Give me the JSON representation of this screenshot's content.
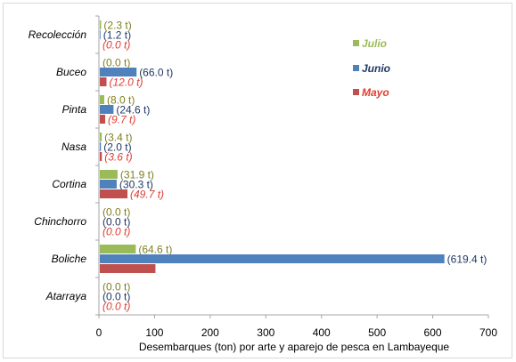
{
  "chart_data": {
    "type": "bar",
    "orientation": "horizontal",
    "xlabel": "Desembarques (ton) por arte y aparejo de pesca en Lambayeque",
    "ylabel": "",
    "xlim": [
      0,
      700
    ],
    "xticks": [
      "0",
      "100",
      "200",
      "300",
      "400",
      "500",
      "600",
      "700"
    ],
    "categories": [
      "Recolección",
      "Buceo",
      "Pinta",
      "Nasa",
      "Cortina",
      "Chinchorro",
      "Boliche",
      "Atarraya"
    ],
    "series": [
      {
        "name": "Julio",
        "color": "#9bbb59",
        "label_color": "#7f7f1f",
        "label_style": "normal",
        "values": [
          2.3,
          0.0,
          8.0,
          3.4,
          31.9,
          0.0,
          64.6,
          0.0
        ],
        "labels": [
          "(2.3 t)",
          "(0.0 t)",
          "(8.0 t)",
          "(3.4 t)",
          "(31.9 t)",
          "(0.0 t)",
          "(64.6 t)",
          "(0.0 t)"
        ]
      },
      {
        "name": "Junio",
        "color": "#4f81bd",
        "label_color": "#1f3864",
        "label_style": "normal",
        "values": [
          1.2,
          66.0,
          24.6,
          2.0,
          30.3,
          0.0,
          619.4,
          0.0
        ],
        "labels": [
          "(1.2 t)",
          "(66.0 t)",
          "(24.6 t)",
          "(2.0 t)",
          "(30.3 t)",
          "(0.0 t)",
          "(619.4 t)",
          "(0.0 t)"
        ]
      },
      {
        "name": "Mayo",
        "color": "#c0504d",
        "label_color": "#e03c31",
        "label_style": "italic",
        "values": [
          0.0,
          12.0,
          9.7,
          3.6,
          49.7,
          0.0,
          100.0,
          0.0
        ],
        "labels": [
          "(0.0 t)",
          "(12.0 t)",
          "(9.7 t)",
          "(3.6 t)",
          "(49.7 t)",
          "(0.0 t)",
          "",
          "(0.0 t)"
        ]
      }
    ],
    "legend": "top-right",
    "grid": false
  }
}
